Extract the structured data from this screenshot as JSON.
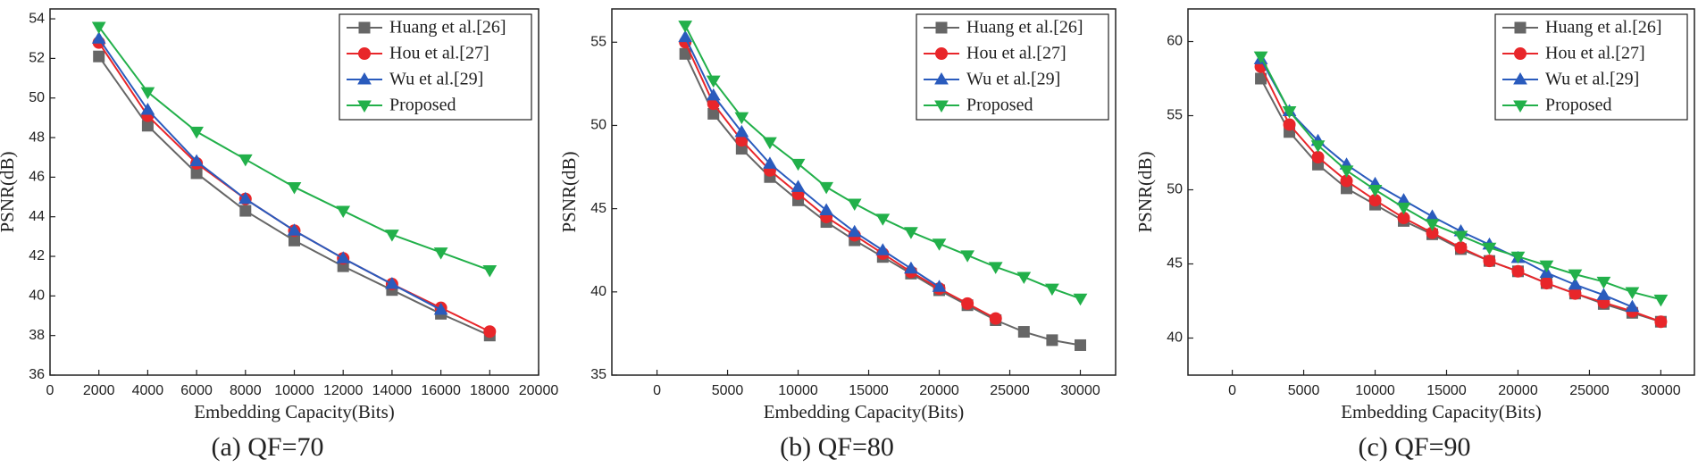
{
  "chart_data": [
    {
      "type": "line",
      "subtitle": "(a) QF=70",
      "x_label": "Embedding Capacity(Bits)",
      "y_label": "PSNR(dB)",
      "legend": "upper right",
      "x": [
        2000,
        4000,
        6000,
        8000,
        10000,
        12000,
        14000,
        16000,
        18000
      ],
      "series": [
        {
          "name": "Huang et al.[26]",
          "color": "#666666",
          "marker": "square",
          "values": [
            52.1,
            48.6,
            46.2,
            44.3,
            42.8,
            41.5,
            40.3,
            39.1,
            38.0
          ]
        },
        {
          "name": "Hou et al.[27]",
          "color": "#e8262a",
          "marker": "circle",
          "values": [
            52.8,
            49.1,
            46.7,
            44.9,
            43.3,
            41.9,
            40.6,
            39.4,
            38.2
          ]
        },
        {
          "name": "Wu et al.[29]",
          "color": "#2a5bbd",
          "marker": "triangle-up",
          "values": [
            53.0,
            49.4,
            46.8,
            44.9,
            43.3,
            41.9,
            40.6,
            39.3,
            null
          ]
        },
        {
          "name": "Proposed",
          "color": "#22b04a",
          "marker": "triangle-down",
          "values": [
            53.6,
            50.3,
            48.3,
            46.9,
            45.5,
            44.3,
            43.1,
            42.2,
            41.3
          ]
        }
      ],
      "xlim": [
        0,
        20000
      ],
      "ylim": [
        36,
        54.5
      ],
      "xticks": [
        0,
        2000,
        4000,
        6000,
        8000,
        10000,
        12000,
        14000,
        16000,
        18000,
        20000
      ],
      "yticks": [
        36,
        38,
        40,
        42,
        44,
        46,
        48,
        50,
        52,
        54
      ]
    },
    {
      "type": "line",
      "subtitle": "(b) QF=80",
      "x_label": "Embedding Capacity(Bits)",
      "y_label": "PSNR(dB)",
      "legend": "upper right",
      "x": [
        2000,
        4000,
        6000,
        8000,
        10000,
        12000,
        14000,
        16000,
        18000,
        20000,
        22000,
        24000,
        26000,
        28000,
        30000
      ],
      "series": [
        {
          "name": "Huang et al.[26]",
          "color": "#666666",
          "marker": "square",
          "values": [
            54.3,
            50.7,
            48.6,
            46.9,
            45.5,
            44.2,
            43.1,
            42.1,
            41.1,
            40.1,
            39.2,
            38.3,
            37.6,
            37.1,
            36.8
          ]
        },
        {
          "name": "Hou et al.[27]",
          "color": "#e8262a",
          "marker": "circle",
          "values": [
            55.0,
            51.3,
            49.1,
            47.3,
            45.9,
            44.5,
            43.4,
            42.3,
            41.2,
            40.2,
            39.3,
            38.4,
            null,
            null,
            null
          ]
        },
        {
          "name": "Wu et al.[29]",
          "color": "#2a5bbd",
          "marker": "triangle-up",
          "values": [
            55.3,
            51.8,
            49.6,
            47.7,
            46.3,
            44.9,
            43.6,
            42.5,
            41.4,
            40.3,
            null,
            null,
            null,
            null,
            null
          ]
        },
        {
          "name": "Proposed",
          "color": "#22b04a",
          "marker": "triangle-down",
          "values": [
            56.0,
            52.7,
            50.5,
            49.0,
            47.7,
            46.3,
            45.3,
            44.4,
            43.6,
            42.9,
            42.2,
            41.5,
            40.9,
            40.2,
            39.6
          ]
        }
      ],
      "xlim": [
        -3200,
        32500
      ],
      "ylim": [
        35,
        57
      ],
      "xticks": [
        0,
        5000,
        10000,
        15000,
        20000,
        25000,
        30000
      ],
      "yticks": [
        35,
        40,
        45,
        50,
        55
      ]
    },
    {
      "type": "line",
      "subtitle": "(c) QF=90",
      "x_label": "Embedding Capacity(Bits)",
      "y_label": "PSNR(dB)",
      "legend": "upper right",
      "x": [
        2000,
        4000,
        6000,
        8000,
        10000,
        12000,
        14000,
        16000,
        18000,
        20000,
        22000,
        24000,
        26000,
        28000,
        30000
      ],
      "series": [
        {
          "name": "Huang et al.[26]",
          "color": "#666666",
          "marker": "square",
          "values": [
            57.5,
            53.9,
            51.7,
            50.1,
            49.0,
            47.9,
            47.0,
            46.0,
            45.2,
            44.5,
            43.7,
            43.0,
            42.3,
            41.7,
            41.1
          ]
        },
        {
          "name": "Hou et al.[27]",
          "color": "#e8262a",
          "marker": "circle",
          "values": [
            58.3,
            54.4,
            52.2,
            50.6,
            49.3,
            48.1,
            47.1,
            46.1,
            45.2,
            44.5,
            43.7,
            43.0,
            42.4,
            41.8,
            41.1
          ]
        },
        {
          "name": "Wu et al.[29]",
          "color": "#2a5bbd",
          "marker": "triangle-up",
          "values": [
            58.8,
            55.3,
            53.3,
            51.7,
            50.4,
            49.3,
            48.2,
            47.2,
            46.3,
            45.4,
            44.4,
            43.6,
            42.9,
            42.1,
            null
          ]
        },
        {
          "name": "Proposed",
          "color": "#22b04a",
          "marker": "triangle-down",
          "values": [
            59.0,
            55.3,
            53.0,
            51.3,
            50.0,
            48.8,
            47.7,
            46.9,
            46.1,
            45.5,
            44.9,
            44.3,
            43.8,
            43.1,
            42.6
          ]
        }
      ],
      "xlim": [
        -3100,
        32350
      ],
      "ylim": [
        37.5,
        62.2
      ],
      "xticks": [
        0,
        5000,
        10000,
        15000,
        20000,
        25000,
        30000
      ],
      "yticks": [
        40,
        45,
        50,
        55,
        60
      ]
    }
  ]
}
